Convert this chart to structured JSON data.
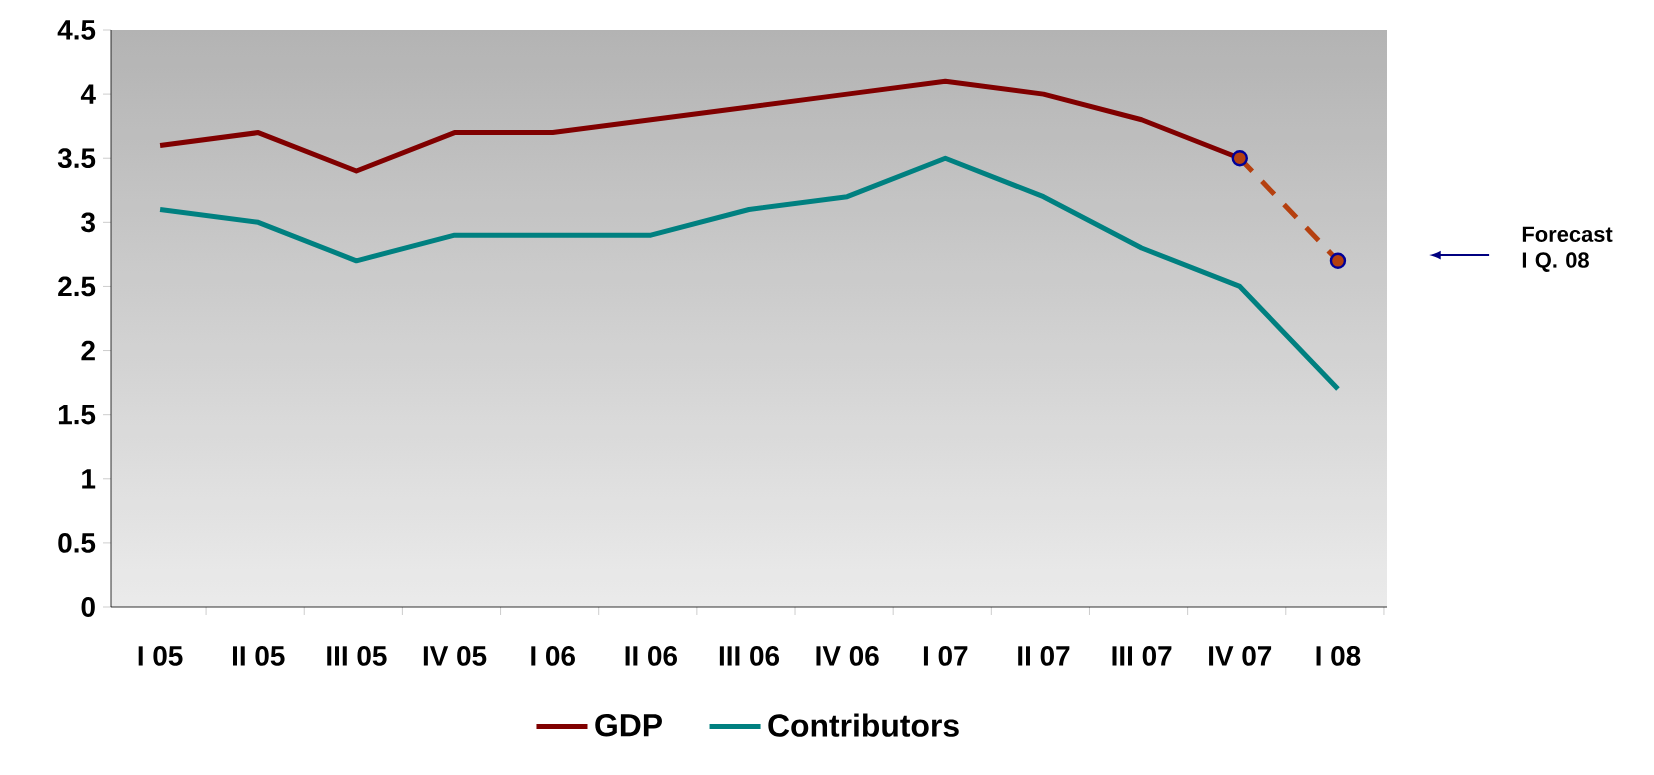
{
  "chart_data": {
    "type": "line",
    "categories": [
      "I 05",
      "II 05",
      "III 05",
      "IV 05",
      "I 06",
      "II 06",
      "III 06",
      "IV 06",
      "I 07",
      "II 07",
      "III 07",
      "IV 07",
      "I 08"
    ],
    "series": [
      {
        "name": "GDP",
        "color": "#800000",
        "values": [
          3.6,
          3.7,
          3.4,
          3.7,
          3.7,
          3.8,
          3.9,
          4.0,
          4.1,
          4.0,
          3.8,
          3.5,
          null
        ]
      },
      {
        "name": "Contributors",
        "color": "#008080",
        "values": [
          3.1,
          3.0,
          2.7,
          2.9,
          2.9,
          2.9,
          3.1,
          3.2,
          3.5,
          3.2,
          2.8,
          2.5,
          1.7
        ]
      },
      {
        "color": "#b5400f",
        "values": [
          null,
          null,
          null,
          null,
          null,
          null,
          null,
          null,
          null,
          null,
          null,
          3.5,
          2.7
        ],
        "line_style": "dashed",
        "marker": "circle"
      }
    ],
    "ylim": [
      0,
      4.5
    ],
    "yticks": [
      0,
      0.5,
      1,
      1.5,
      2,
      2.5,
      3,
      3.5,
      4,
      4.5
    ],
    "grid": false,
    "legend": "bottom",
    "annotations": [
      "Forecast I Q. 08"
    ]
  }
}
